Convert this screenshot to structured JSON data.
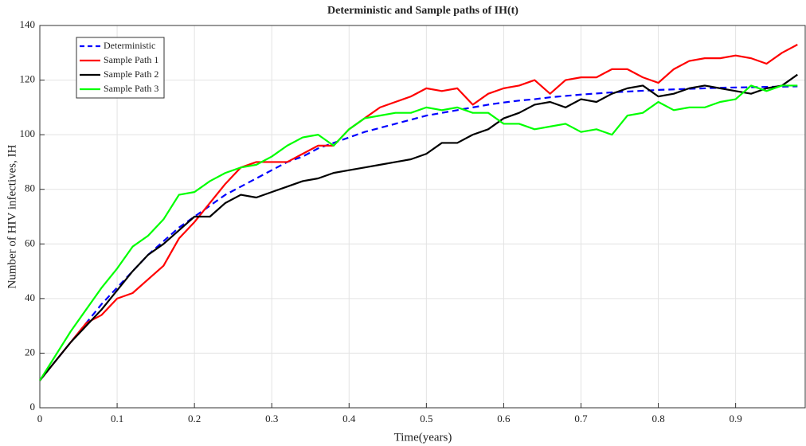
{
  "chart_data": {
    "type": "line",
    "title": "Deterministic and Sample paths of IH(t)",
    "x_label": "Time(years)",
    "y_label": "Number of HIV infectives, IH",
    "x": [
      0,
      0.02,
      0.04,
      0.06,
      0.08,
      0.1,
      0.12,
      0.14,
      0.16,
      0.18,
      0.2,
      0.22,
      0.24,
      0.26,
      0.28,
      0.3,
      0.32,
      0.34,
      0.36,
      0.38,
      0.4,
      0.42,
      0.44,
      0.46,
      0.48,
      0.5,
      0.52,
      0.54,
      0.56,
      0.58,
      0.6,
      0.62,
      0.64,
      0.66,
      0.68,
      0.7,
      0.72,
      0.74,
      0.76,
      0.78,
      0.8,
      0.82,
      0.84,
      0.86,
      0.88,
      0.9,
      0.92,
      0.94,
      0.96,
      0.98
    ],
    "series": [
      {
        "name": "Deterministic",
        "color": "#0000ff",
        "line_style": "dashed",
        "values": [
          10,
          17,
          24,
          31,
          38,
          44,
          50,
          56,
          61,
          66,
          70,
          74,
          78,
          81,
          84,
          87,
          90,
          92,
          95,
          97,
          99,
          101,
          102.5,
          104,
          105.5,
          107,
          108,
          109,
          110,
          111,
          111.8,
          112.5,
          113,
          113.7,
          114.2,
          114.7,
          115.1,
          115.5,
          115.8,
          116.1,
          116.4,
          116.6,
          116.8,
          117,
          117.2,
          117.3,
          117.4,
          117.5,
          117.6,
          117.7
        ]
      },
      {
        "name": "Sample Path 1",
        "color": "#ff0000",
        "line_style": "solid",
        "values": [
          10,
          17,
          24,
          31,
          34,
          40,
          42,
          47,
          52,
          62,
          68,
          75,
          82,
          88,
          90,
          90,
          90,
          93,
          96,
          96,
          102,
          106,
          110,
          112,
          114,
          117,
          116,
          117,
          111,
          115,
          117,
          118,
          120,
          115,
          120,
          121,
          121,
          124,
          124,
          121,
          119,
          124,
          127,
          128,
          128,
          129,
          128,
          126,
          130,
          133
        ]
      },
      {
        "name": "Sample Path 2",
        "color": "#000000",
        "line_style": "solid",
        "values": [
          10,
          17,
          24,
          30,
          36,
          43,
          50,
          56,
          60,
          65,
          70,
          70,
          75,
          78,
          77,
          79,
          81,
          83,
          84,
          86,
          87,
          88,
          89,
          90,
          91,
          93,
          97,
          97,
          100,
          102,
          106,
          108,
          111,
          112,
          110,
          113,
          112,
          115,
          117,
          118,
          114,
          115,
          117,
          118,
          117,
          116,
          115,
          117,
          118,
          122
        ]
      },
      {
        "name": "Sample Path 3",
        "color": "#00ff00",
        "line_style": "solid",
        "values": [
          10,
          19,
          28,
          36,
          44,
          51,
          59,
          63,
          69,
          78,
          79,
          83,
          86,
          88,
          89,
          92,
          96,
          99,
          100,
          96,
          102,
          106,
          107,
          108,
          108,
          110,
          109,
          110,
          108,
          108,
          104,
          104,
          102,
          103,
          104,
          101,
          102,
          100,
          107,
          108,
          112,
          109,
          110,
          110,
          112,
          113,
          118,
          116,
          118,
          118
        ]
      }
    ],
    "xlim": [
      0,
      0.99
    ],
    "ylim": [
      0,
      140
    ],
    "xticks": [
      0,
      0.1,
      0.2,
      0.3,
      0.4,
      0.5,
      0.6,
      0.7,
      0.8,
      0.9
    ],
    "yticks": [
      0,
      20,
      40,
      60,
      80,
      100,
      120,
      140
    ],
    "grid": true,
    "legend": "northwest"
  }
}
